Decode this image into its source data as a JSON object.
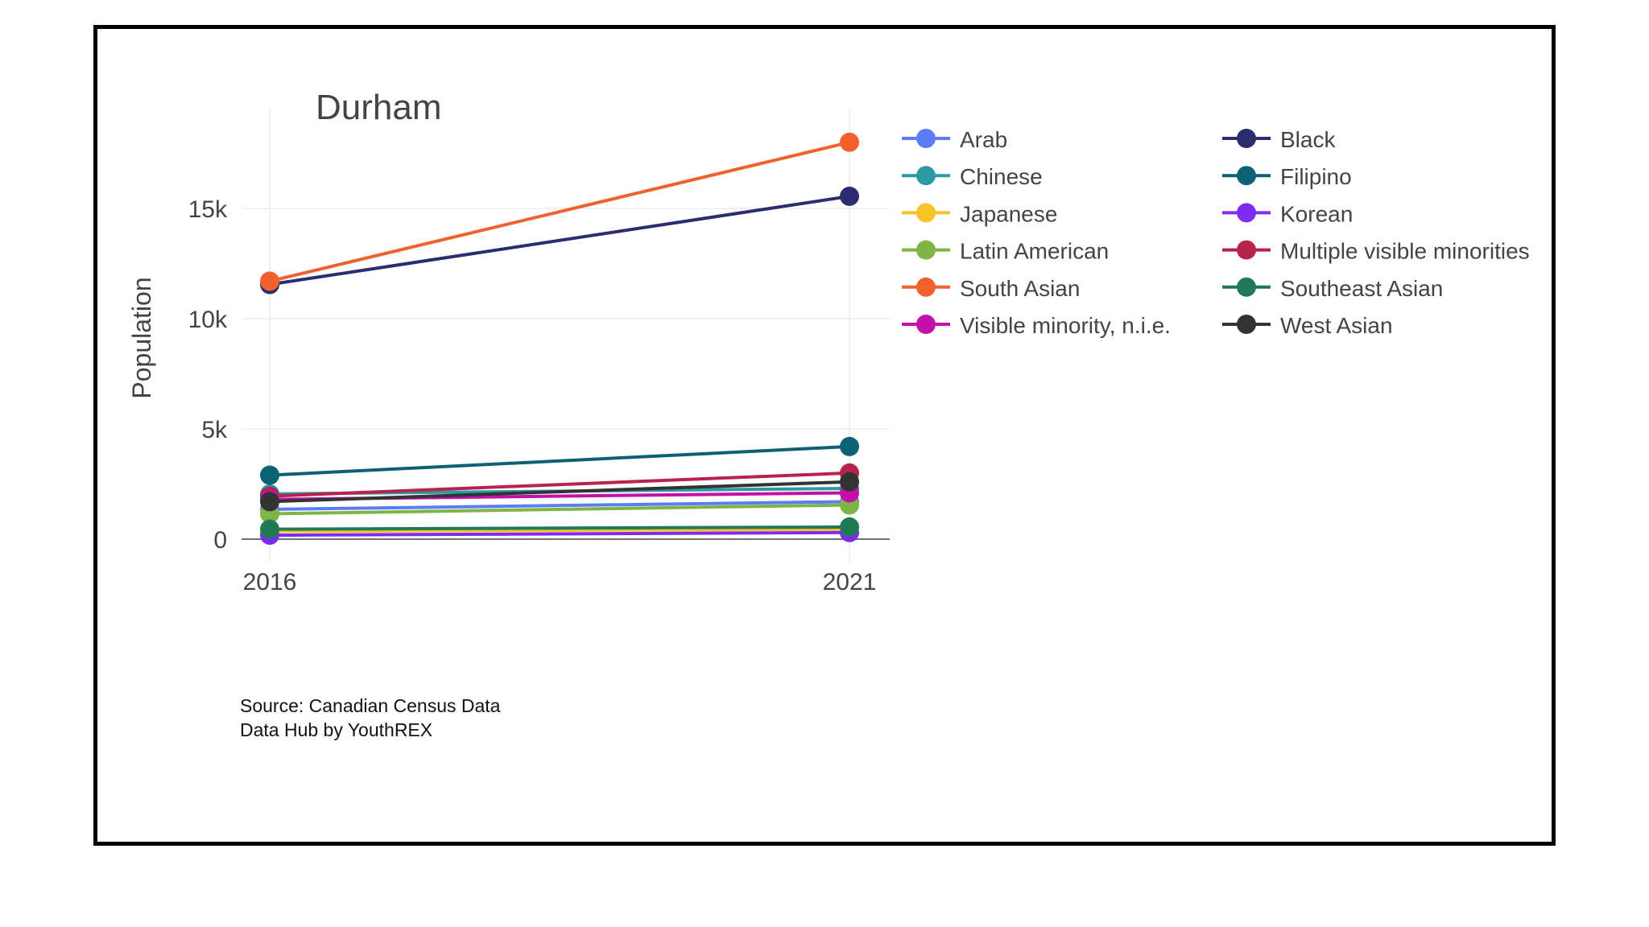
{
  "chart_data": {
    "type": "line",
    "title": "Durham",
    "xlabel": "",
    "ylabel": "Population",
    "x": [
      "2016",
      "2021"
    ],
    "ylim": [
      -1000,
      19500
    ],
    "yticks": [
      0,
      5000,
      10000,
      15000
    ],
    "ytick_labels": [
      "0",
      "5k",
      "10k",
      "15k"
    ],
    "grid": true,
    "legend_position": "right",
    "series": [
      {
        "name": "Arab",
        "color": "#5b7cf6",
        "values": [
          1350,
          1700
        ]
      },
      {
        "name": "Black",
        "color": "#2a2d6e",
        "values": [
          11550,
          15550
        ]
      },
      {
        "name": "Chinese",
        "color": "#2b9aa5",
        "values": [
          2050,
          2300
        ]
      },
      {
        "name": "Filipino",
        "color": "#0c6274",
        "values": [
          2900,
          4200
        ]
      },
      {
        "name": "Japanese",
        "color": "#f7c325",
        "values": [
          350,
          450
        ]
      },
      {
        "name": "Korean",
        "color": "#7f2af0",
        "values": [
          180,
          300
        ]
      },
      {
        "name": "Latin American",
        "color": "#7fb446",
        "values": [
          1150,
          1550
        ]
      },
      {
        "name": "Multiple visible minorities",
        "color": "#b8234c",
        "values": [
          1950,
          3000
        ]
      },
      {
        "name": "South Asian",
        "color": "#f0612e",
        "values": [
          11700,
          18000
        ]
      },
      {
        "name": "Southeast Asian",
        "color": "#1f7a55",
        "values": [
          450,
          550
        ]
      },
      {
        "name": "Visible minority, n.i.e.",
        "color": "#c210a8",
        "values": [
          1800,
          2100
        ]
      },
      {
        "name": "West Asian",
        "color": "#333333",
        "values": [
          1700,
          2600
        ]
      }
    ]
  },
  "source": {
    "line1": "Source: Canadian Census Data",
    "line2": "Data Hub by YouthREX"
  }
}
